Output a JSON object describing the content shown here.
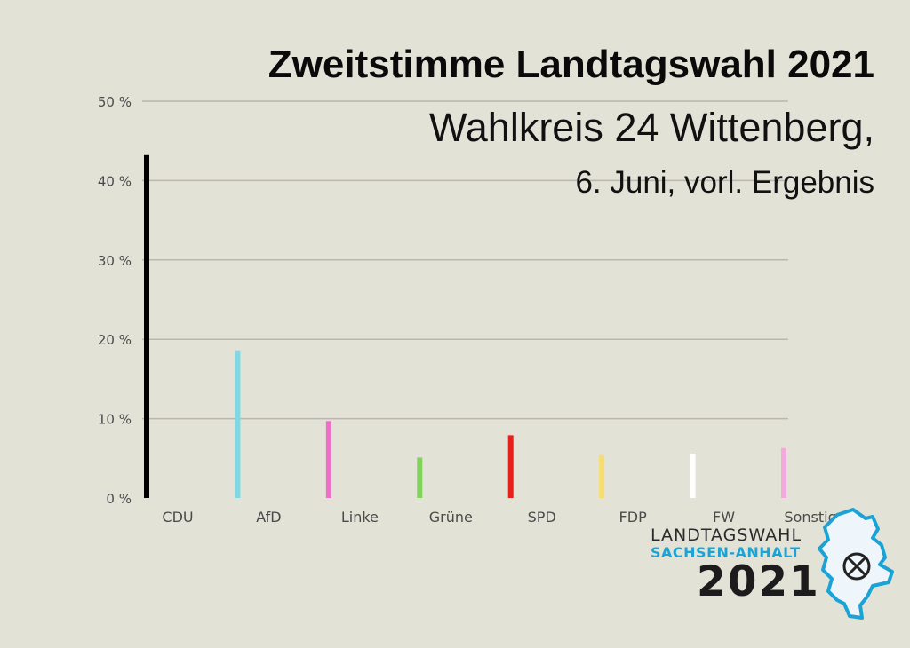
{
  "header": {
    "title": "Zweitstimme Landtagswahl 2021",
    "subtitle": "Wahlkreis 24 Wittenberg,",
    "subtitle2": "6. Juni, vorl. Ergebnis"
  },
  "logo": {
    "line1": "LANDTAGSWAHL",
    "line2": "SACHSEN-ANHALT",
    "line3": "2021"
  },
  "chart_data": {
    "type": "bar",
    "title": "Zweitstimme Landtagswahl 2021",
    "categories": [
      "CDU",
      "AfD",
      "Linke",
      "Grüne",
      "SPD",
      "FDP",
      "FW",
      "Sonstige"
    ],
    "values": [
      43.2,
      18.6,
      9.7,
      5.1,
      7.9,
      5.4,
      5.6,
      6.3
    ],
    "colors": [
      "#000000",
      "#7dd9e3",
      "#ef6fc4",
      "#7fd45a",
      "#e8201c",
      "#f8dd6a",
      "#ffffff",
      "#f4a8dc"
    ],
    "ylim": [
      0,
      50
    ],
    "yticks": [
      0,
      10,
      20,
      30,
      40,
      50
    ],
    "ytick_labels": [
      "0 %",
      "10 %",
      "20 %",
      "30 %",
      "40 %",
      "50 %"
    ],
    "grid": true,
    "xlabel": "",
    "ylabel": ""
  }
}
